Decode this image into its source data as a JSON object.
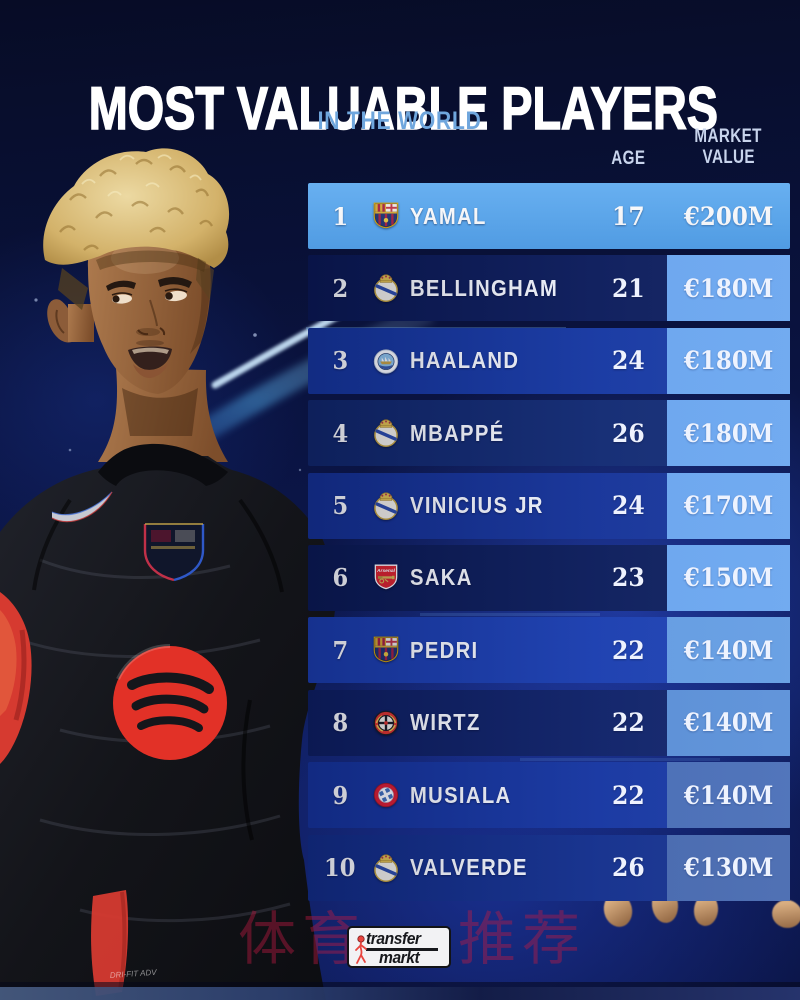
{
  "title": "MOST VALUABLE PLAYERS",
  "subtitle": "IN THE WORLD",
  "table": {
    "headers": {
      "age": "AGE",
      "market_value_line1": "MARKET",
      "market_value_line2": "VALUE"
    },
    "rows": [
      {
        "rank": "1",
        "player": "YAMAL",
        "club": "barcelona",
        "age": "17",
        "value": "€200M",
        "highlight": true
      },
      {
        "rank": "2",
        "player": "BELLINGHAM",
        "club": "real-madrid",
        "age": "21",
        "value": "€180M",
        "highlight": false
      },
      {
        "rank": "3",
        "player": "HAALAND",
        "club": "man-city",
        "age": "24",
        "value": "€180M",
        "highlight": false
      },
      {
        "rank": "4",
        "player": "MBAPPÉ",
        "club": "real-madrid",
        "age": "26",
        "value": "€180M",
        "highlight": false
      },
      {
        "rank": "5",
        "player": "VINICIUS JR",
        "club": "real-madrid",
        "age": "24",
        "value": "€170M",
        "highlight": false
      },
      {
        "rank": "6",
        "player": "SAKA",
        "club": "arsenal",
        "age": "23",
        "value": "€150M",
        "highlight": false
      },
      {
        "rank": "7",
        "player": "PEDRI",
        "club": "barcelona",
        "age": "22",
        "value": "€140M",
        "highlight": false
      },
      {
        "rank": "8",
        "player": "WIRTZ",
        "club": "leverkusen",
        "age": "22",
        "value": "€140M",
        "highlight": false
      },
      {
        "rank": "9",
        "player": "MUSIALA",
        "club": "bayern-munich",
        "age": "22",
        "value": "€140M",
        "highlight": false
      },
      {
        "rank": "10",
        "player": "VALVERDE",
        "club": "real-madrid",
        "age": "26",
        "value": "€130M",
        "highlight": false
      }
    ]
  },
  "footer": {
    "logo_top": "transfer",
    "logo_bottom": "markt"
  },
  "watermark": {
    "left": "体育",
    "right": "推荐"
  },
  "colors": {
    "highlight_row": "#57a7ef",
    "subtitle_blue": "#6fa6dd",
    "watermark_red": "rgba(190,26,66,0.42)",
    "accent_spotify_red": "#e23127",
    "row_backgrounds": [
      "#57a7ef",
      "#0a1750",
      "#15359c",
      "#102669",
      "#143092",
      "#0a1850",
      "#1a3cab",
      "#0d1d5e",
      "#15339b",
      "#122c85"
    ],
    "value_cell_backgrounds": [
      "transparent",
      "#6fabee",
      "#6fabee",
      "#6fabee",
      "#6fabee",
      "#6fabee",
      "#67a0e0",
      "#5d92d4",
      "#4a6db0",
      "#4868a8"
    ]
  }
}
